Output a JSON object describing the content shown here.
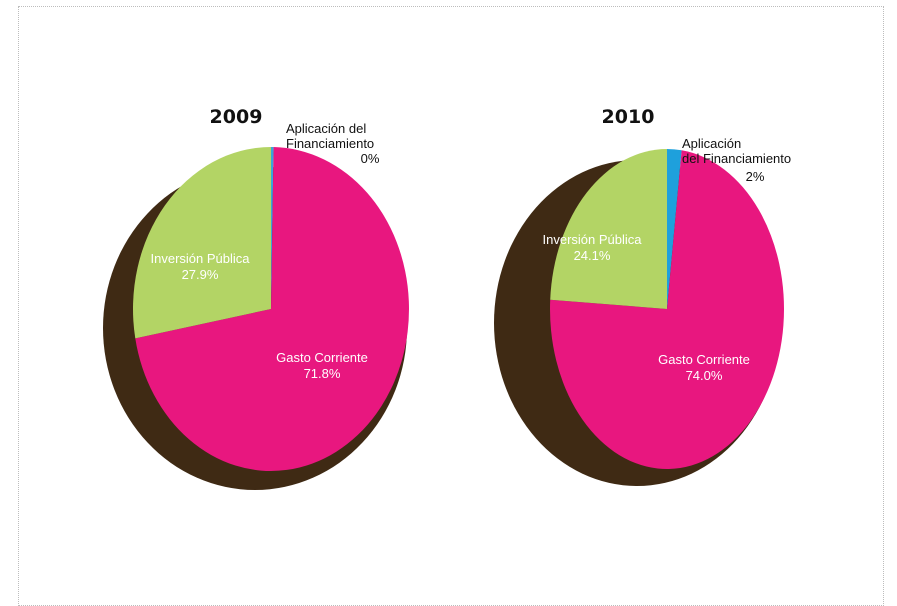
{
  "chart_data": [
    {
      "type": "pie",
      "title": "2009",
      "slices": [
        {
          "name": "Aplicación del Financiamiento",
          "value": 0.3,
          "label_lines": [
            "Aplicación del",
            "Financiamiento",
            "0%"
          ],
          "color": "#3aa6d8"
        },
        {
          "name": "Gasto Corriente",
          "value": 71.8,
          "label_lines": [
            "Gasto Corriente",
            "71.8%"
          ],
          "color": "#e8177f"
        },
        {
          "name": "Inversión Pública",
          "value": 27.9,
          "label_lines": [
            "Inversión Pública",
            "27.9%"
          ],
          "color": "#b3d465"
        }
      ]
    },
    {
      "type": "pie",
      "title": "2010",
      "slices": [
        {
          "name": "Aplicación del Financiamiento",
          "value": 2,
          "label_lines": [
            "Aplicación",
            "del Financiamiento",
            "2%"
          ],
          "color": "#1ea0dc"
        },
        {
          "name": "Gasto Corriente",
          "value": 74.0,
          "label_lines": [
            "Gasto Corriente",
            "74.0%"
          ],
          "color": "#e8177f"
        },
        {
          "name": "Inversión Pública",
          "value": 24.1,
          "label_lines": [
            "Inversión Pública",
            "24.1%"
          ],
          "color": "#b3d465"
        }
      ]
    }
  ],
  "colors": {
    "shadow": "#3f2a14",
    "frame_border": "#bdbdbd"
  }
}
